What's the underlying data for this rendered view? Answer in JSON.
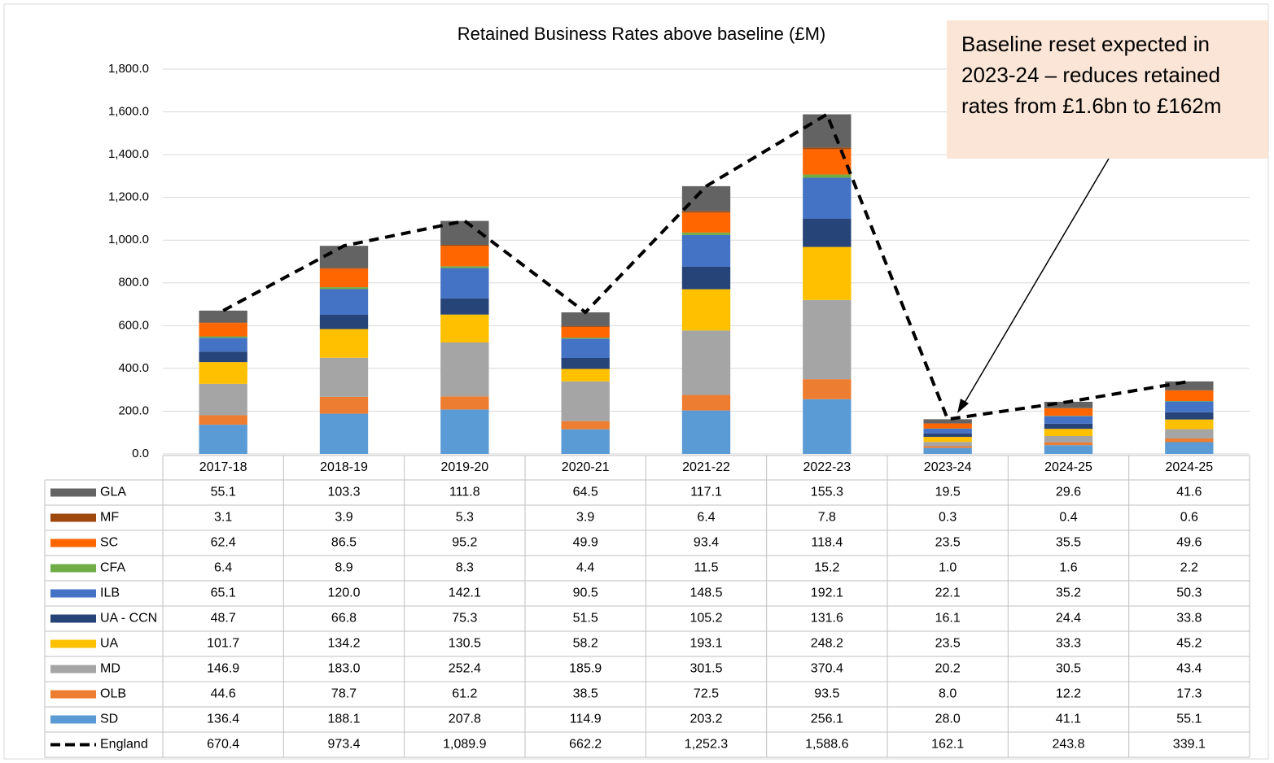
{
  "chart_data": {
    "type": "stacked_bar_line",
    "title": "Retained Business Rates above baseline (£M)",
    "annotation": "Baseline reset expected in 2023-24 – reduces retained rates from £1.6bn to £162m",
    "categories": [
      "2017-18",
      "2018-19",
      "2019-20",
      "2020-21",
      "2021-22",
      "2022-23",
      "2023-24",
      "2024-25",
      "2024-25"
    ],
    "ylim": [
      0,
      1800
    ],
    "yticks": [
      {
        "value": 0,
        "label": "0.0"
      },
      {
        "value": 200,
        "label": "200.0"
      },
      {
        "value": 400,
        "label": "400.0"
      },
      {
        "value": 600,
        "label": "600.0"
      },
      {
        "value": 800,
        "label": "800.0"
      },
      {
        "value": 1000,
        "label": "1,000.0"
      },
      {
        "value": 1200,
        "label": "1,200.0"
      },
      {
        "value": 1400,
        "label": "1,400.0"
      },
      {
        "value": 1600,
        "label": "1,600.0"
      },
      {
        "value": 1800,
        "label": "1,800.0"
      }
    ],
    "grid": true,
    "series": [
      {
        "name": "GLA",
        "color": "#636363",
        "values": [
          55.1,
          103.3,
          111.8,
          64.5,
          117.1,
          155.3,
          19.5,
          29.6,
          41.6
        ],
        "value_labels": [
          "55.1",
          "103.3",
          "111.8",
          "64.5",
          "117.1",
          "155.3",
          "19.5",
          "29.6",
          "41.6"
        ]
      },
      {
        "name": "MF",
        "color": "#9e480e",
        "values": [
          3.1,
          3.9,
          5.3,
          3.9,
          6.4,
          7.8,
          0.3,
          0.4,
          0.6
        ],
        "value_labels": [
          "3.1",
          "3.9",
          "5.3",
          "3.9",
          "6.4",
          "7.8",
          "0.3",
          "0.4",
          "0.6"
        ]
      },
      {
        "name": "SC",
        "color": "#ff6600",
        "values": [
          62.4,
          86.5,
          95.2,
          49.9,
          93.4,
          118.4,
          23.5,
          35.5,
          49.6
        ],
        "value_labels": [
          "62.4",
          "86.5",
          "95.2",
          "49.9",
          "93.4",
          "118.4",
          "23.5",
          "35.5",
          "49.6"
        ]
      },
      {
        "name": "CFA",
        "color": "#70ad47",
        "values": [
          6.4,
          8.9,
          8.3,
          4.4,
          11.5,
          15.2,
          1.0,
          1.6,
          2.2
        ],
        "value_labels": [
          "6.4",
          "8.9",
          "8.3",
          "4.4",
          "11.5",
          "15.2",
          "1.0",
          "1.6",
          "2.2"
        ]
      },
      {
        "name": "ILB",
        "color": "#4472c4",
        "values": [
          65.1,
          120.0,
          142.1,
          90.5,
          148.5,
          192.1,
          22.1,
          35.2,
          50.3
        ],
        "value_labels": [
          "65.1",
          "120.0",
          "142.1",
          "90.5",
          "148.5",
          "192.1",
          "22.1",
          "35.2",
          "50.3"
        ]
      },
      {
        "name": "UA - CCN",
        "color": "#264478",
        "values": [
          48.7,
          66.8,
          75.3,
          51.5,
          105.2,
          131.6,
          16.1,
          24.4,
          33.8
        ],
        "value_labels": [
          "48.7",
          "66.8",
          "75.3",
          "51.5",
          "105.2",
          "131.6",
          "16.1",
          "24.4",
          "33.8"
        ]
      },
      {
        "name": "UA",
        "color": "#ffc000",
        "values": [
          101.7,
          134.2,
          130.5,
          58.2,
          193.1,
          248.2,
          23.5,
          33.3,
          45.2
        ],
        "value_labels": [
          "101.7",
          "134.2",
          "130.5",
          "58.2",
          "193.1",
          "248.2",
          "23.5",
          "33.3",
          "45.2"
        ]
      },
      {
        "name": "MD",
        "color": "#a5a5a5",
        "values": [
          146.9,
          183.0,
          252.4,
          185.9,
          301.5,
          370.4,
          20.2,
          30.5,
          43.4
        ],
        "value_labels": [
          "146.9",
          "183.0",
          "252.4",
          "185.9",
          "301.5",
          "370.4",
          "20.2",
          "30.5",
          "43.4"
        ]
      },
      {
        "name": "OLB",
        "color": "#ed7d31",
        "values": [
          44.6,
          78.7,
          61.2,
          38.5,
          72.5,
          93.5,
          8.0,
          12.2,
          17.3
        ],
        "value_labels": [
          "44.6",
          "78.7",
          "61.2",
          "38.5",
          "72.5",
          "93.5",
          "8.0",
          "12.2",
          "17.3"
        ]
      },
      {
        "name": "SD",
        "color": "#5b9bd5",
        "values": [
          136.4,
          188.1,
          207.8,
          114.9,
          203.2,
          256.1,
          28.0,
          41.1,
          55.1
        ],
        "value_labels": [
          "136.4",
          "188.1",
          "207.8",
          "114.9",
          "203.2",
          "256.1",
          "28.0",
          "41.1",
          "55.1"
        ]
      }
    ],
    "line": {
      "name": "England",
      "color": "#000000",
      "values": [
        670.4,
        973.4,
        1089.9,
        662.2,
        1252.3,
        1588.6,
        162.1,
        243.8,
        339.1
      ],
      "value_labels": [
        "670.4",
        "973.4",
        "1,089.9",
        "662.2",
        "1,252.3",
        "1,588.6",
        "162.1",
        "243.8",
        "339.1"
      ]
    }
  }
}
